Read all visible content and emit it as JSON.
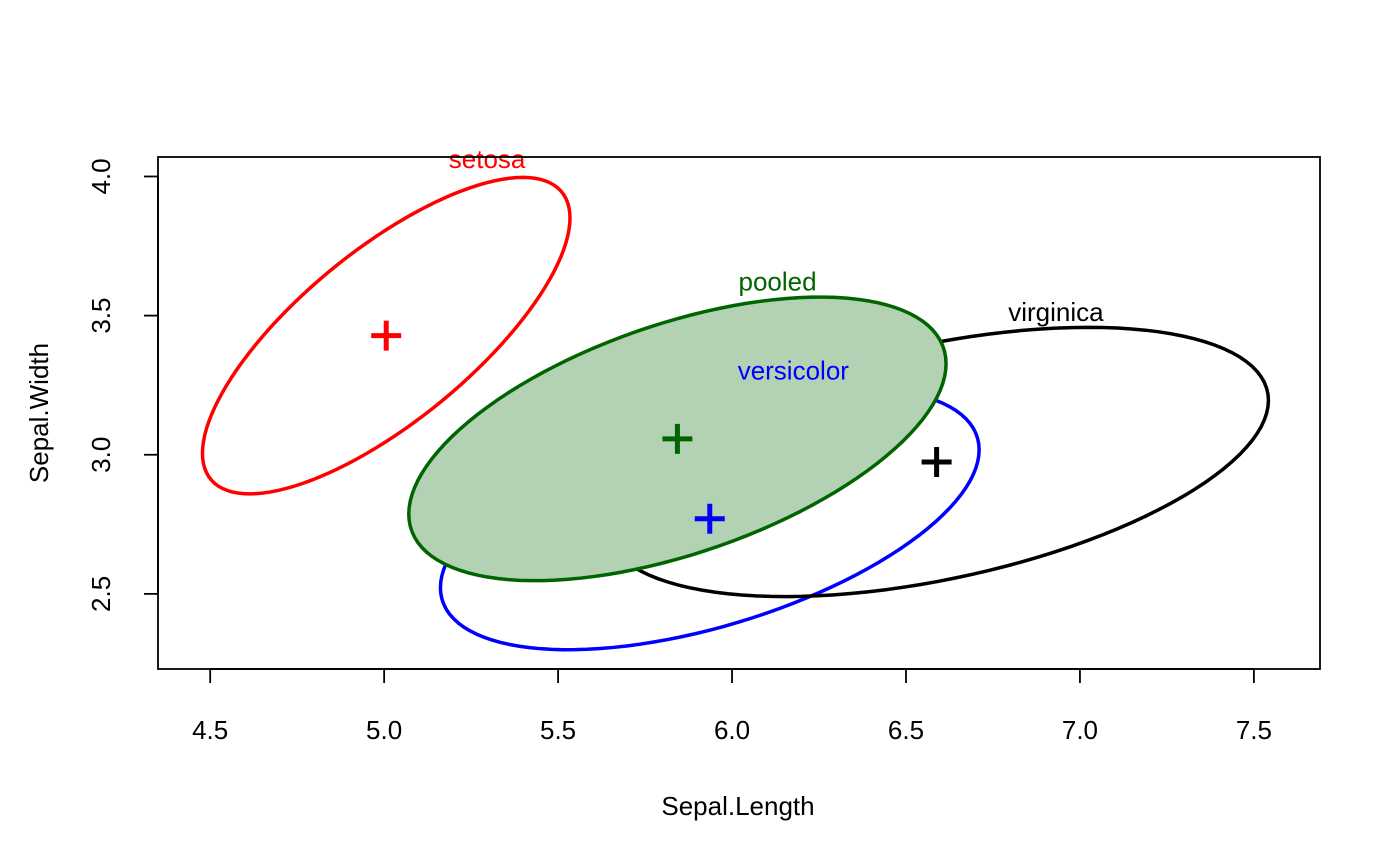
{
  "chart_data": {
    "type": "scatter",
    "xlabel": "Sepal.Length",
    "ylabel": "Sepal.Width",
    "xlim": [
      4.35,
      7.69
    ],
    "ylim": [
      2.23,
      4.07
    ],
    "x_ticks": [
      "4.5",
      "5.0",
      "5.5",
      "6.0",
      "6.5",
      "7.0",
      "7.5"
    ],
    "y_ticks": [
      "2.5",
      "3.0",
      "3.5",
      "4.0"
    ],
    "grid": false,
    "legend": "none",
    "series": [
      {
        "name": "setosa",
        "color": "#ff0000",
        "filled": false,
        "fill": "",
        "centroid": {
          "x": 5.006,
          "y": 3.428
        },
        "label_pos": {
          "x": 5.406,
          "y": 4.03
        },
        "cov": [
          [
            0.124,
            0.0992
          ],
          [
            0.0992,
            0.1437
          ]
        ],
        "radius": 1.5
      },
      {
        "name": "versicolor",
        "color": "#0000ff",
        "filled": false,
        "fill": "",
        "centroid": {
          "x": 5.936,
          "y": 2.77
        },
        "label_pos": {
          "x": 6.336,
          "y": 3.27
        },
        "cov": [
          [
            0.2664,
            0.0852
          ],
          [
            0.0852,
            0.0985
          ]
        ],
        "radius": 1.5
      },
      {
        "name": "virginica",
        "color": "#000000",
        "filled": false,
        "fill": "",
        "centroid": {
          "x": 6.588,
          "y": 2.974
        },
        "label_pos": {
          "x": 7.068,
          "y": 3.48
        },
        "cov": [
          [
            0.4043,
            0.0938
          ],
          [
            0.0938,
            0.104
          ]
        ],
        "radius": 1.5
      },
      {
        "name": "pooled",
        "color": "#006400",
        "filled": true,
        "fill": "#b3d1b3",
        "centroid": {
          "x": 5.843,
          "y": 3.057
        },
        "label_pos": {
          "x": 6.243,
          "y": 3.59
        },
        "cov": [
          [
            0.265,
            0.0927
          ],
          [
            0.0927,
            0.1154
          ]
        ],
        "radius": 1.5
      }
    ]
  }
}
